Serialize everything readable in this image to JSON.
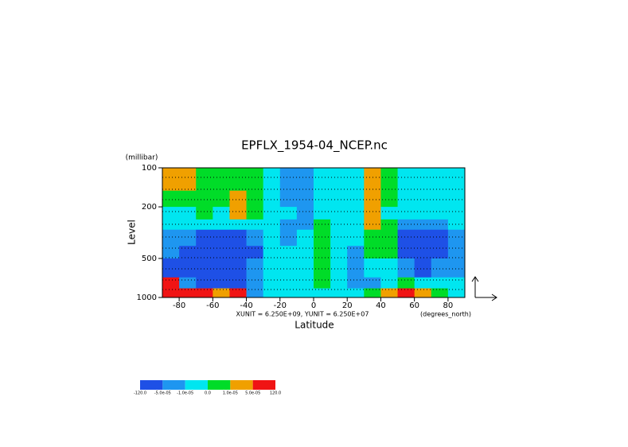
{
  "chart_data": {
    "type": "contour",
    "title": "EPFLX_1954-04_NCEP.nc",
    "ylabel": "Level",
    "yunit": "(millibar)",
    "xlabel": "Latitude",
    "xunit": "(degrees_north)",
    "note": "XUNIT = 6.250E+09, YUNIT = 6.250E+07",
    "xlim": [
      -90,
      90
    ],
    "xticks": [
      -80,
      -60,
      -40,
      -20,
      0,
      20,
      40,
      60,
      80
    ],
    "ylim": [
      1000,
      100
    ],
    "yticks": [
      100,
      200,
      500,
      1000
    ],
    "ylog": true,
    "lat_edges": [
      -90,
      -80,
      -70,
      -60,
      -50,
      -40,
      -30,
      -20,
      -10,
      0,
      10,
      20,
      30,
      40,
      50,
      60,
      70,
      80,
      90
    ],
    "lev_edges": [
      100,
      150,
      200,
      250,
      300,
      400,
      500,
      700,
      850,
      1000
    ],
    "z": [
      [
        3e-05,
        3e-05,
        5e-06,
        5e-06,
        5e-06,
        5e-06,
        -5e-06,
        -3e-05,
        -3e-05,
        -5e-06,
        -5e-06,
        -5e-06,
        3e-05,
        5e-06,
        -5e-06,
        -5e-06,
        -5e-06,
        -5e-06
      ],
      [
        5e-06,
        5e-06,
        5e-06,
        5e-06,
        3e-05,
        5e-06,
        -5e-06,
        -3e-05,
        -3e-05,
        -5e-06,
        -5e-06,
        -5e-06,
        3e-05,
        5e-06,
        -5e-06,
        -5e-06,
        -5e-06,
        -5e-06
      ],
      [
        -5e-06,
        -5e-06,
        5e-06,
        -5e-06,
        3e-05,
        5e-06,
        -5e-06,
        -5e-06,
        -3e-05,
        -5e-06,
        -5e-06,
        -5e-06,
        3e-05,
        -5e-06,
        -5e-06,
        -5e-06,
        -5e-06,
        -5e-06
      ],
      [
        -5e-06,
        -5e-06,
        -5e-06,
        -5e-06,
        -5e-06,
        -5e-06,
        -5e-06,
        -3e-05,
        -3e-05,
        5e-06,
        -5e-06,
        -5e-06,
        3e-05,
        5e-06,
        -3e-05,
        -3e-05,
        -3e-05,
        -5e-06
      ],
      [
        -3e-05,
        -3e-05,
        -0.0001,
        -0.0001,
        -0.0001,
        -3e-05,
        -5e-06,
        -3e-05,
        -5e-06,
        5e-06,
        -5e-06,
        -5e-06,
        5e-06,
        5e-06,
        -0.0001,
        -0.0001,
        -0.0001,
        -3e-05
      ],
      [
        -3e-05,
        -0.0001,
        -0.0001,
        -0.0001,
        -0.0001,
        -0.0001,
        -5e-06,
        -5e-06,
        -5e-06,
        5e-06,
        -5e-06,
        -3e-05,
        5e-06,
        5e-06,
        -0.0001,
        -0.0001,
        -0.0001,
        -3e-05
      ],
      [
        -0.0001,
        -0.0001,
        -0.0001,
        -0.0001,
        -0.0001,
        -3e-05,
        -5e-06,
        -5e-06,
        -5e-06,
        5e-06,
        -5e-06,
        -3e-05,
        -5e-06,
        -5e-06,
        -3e-05,
        -0.0001,
        -3e-05,
        -3e-05
      ],
      [
        0.0001,
        -3e-05,
        -0.0001,
        -0.0001,
        -0.0001,
        -3e-05,
        -5e-06,
        -5e-06,
        -5e-06,
        5e-06,
        -5e-06,
        -3e-05,
        -3e-05,
        -5e-06,
        5e-06,
        -5e-06,
        -5e-06,
        -5e-06
      ],
      [
        0.0001,
        0.0001,
        0.0001,
        3e-05,
        0.0001,
        -3e-05,
        -5e-06,
        -5e-06,
        -5e-06,
        -5e-06,
        -5e-06,
        -5e-06,
        5e-06,
        3e-05,
        0.0001,
        3e-05,
        5e-06,
        -5e-06
      ]
    ],
    "levels": [
      {
        "value": -120,
        "label": "-120.0"
      },
      {
        "value": -5e-05,
        "label": "-5.0e-05"
      },
      {
        "value": -1e-05,
        "label": "-1.0e-05"
      },
      {
        "value": 0,
        "label": "0.0"
      },
      {
        "value": 1e-05,
        "label": "1.0e-05"
      },
      {
        "value": 5e-05,
        "label": "5.0e-05"
      },
      {
        "value": 120,
        "label": "120.0"
      }
    ],
    "colors": [
      "#1e50e6",
      "#1e96f0",
      "#00e6f0",
      "#00dc28",
      "#f0a000",
      "#f01414"
    ]
  }
}
